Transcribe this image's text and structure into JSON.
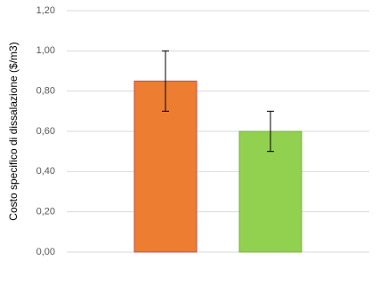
{
  "chart_data": {
    "type": "bar",
    "y_label": "Costo specifico di dissalazione ($/m3)",
    "categories": [
      null,
      null
    ],
    "values": [
      0.85,
      0.6
    ],
    "errors": [
      0.15,
      0.1
    ],
    "colors": [
      "#ed7d31",
      "#92d050"
    ],
    "ylim": [
      0,
      1.2
    ],
    "yticks": [
      {
        "value": 0,
        "label": "0,00"
      },
      {
        "value": 0.2,
        "label": "0,20"
      },
      {
        "value": 0.4,
        "label": "0,40"
      },
      {
        "value": 0.6,
        "label": "0,60"
      },
      {
        "value": 0.8,
        "label": "0,80"
      },
      {
        "value": 1.0,
        "label": "1,00"
      },
      {
        "value": 1.2,
        "label": "1,20"
      }
    ],
    "grid": true
  }
}
